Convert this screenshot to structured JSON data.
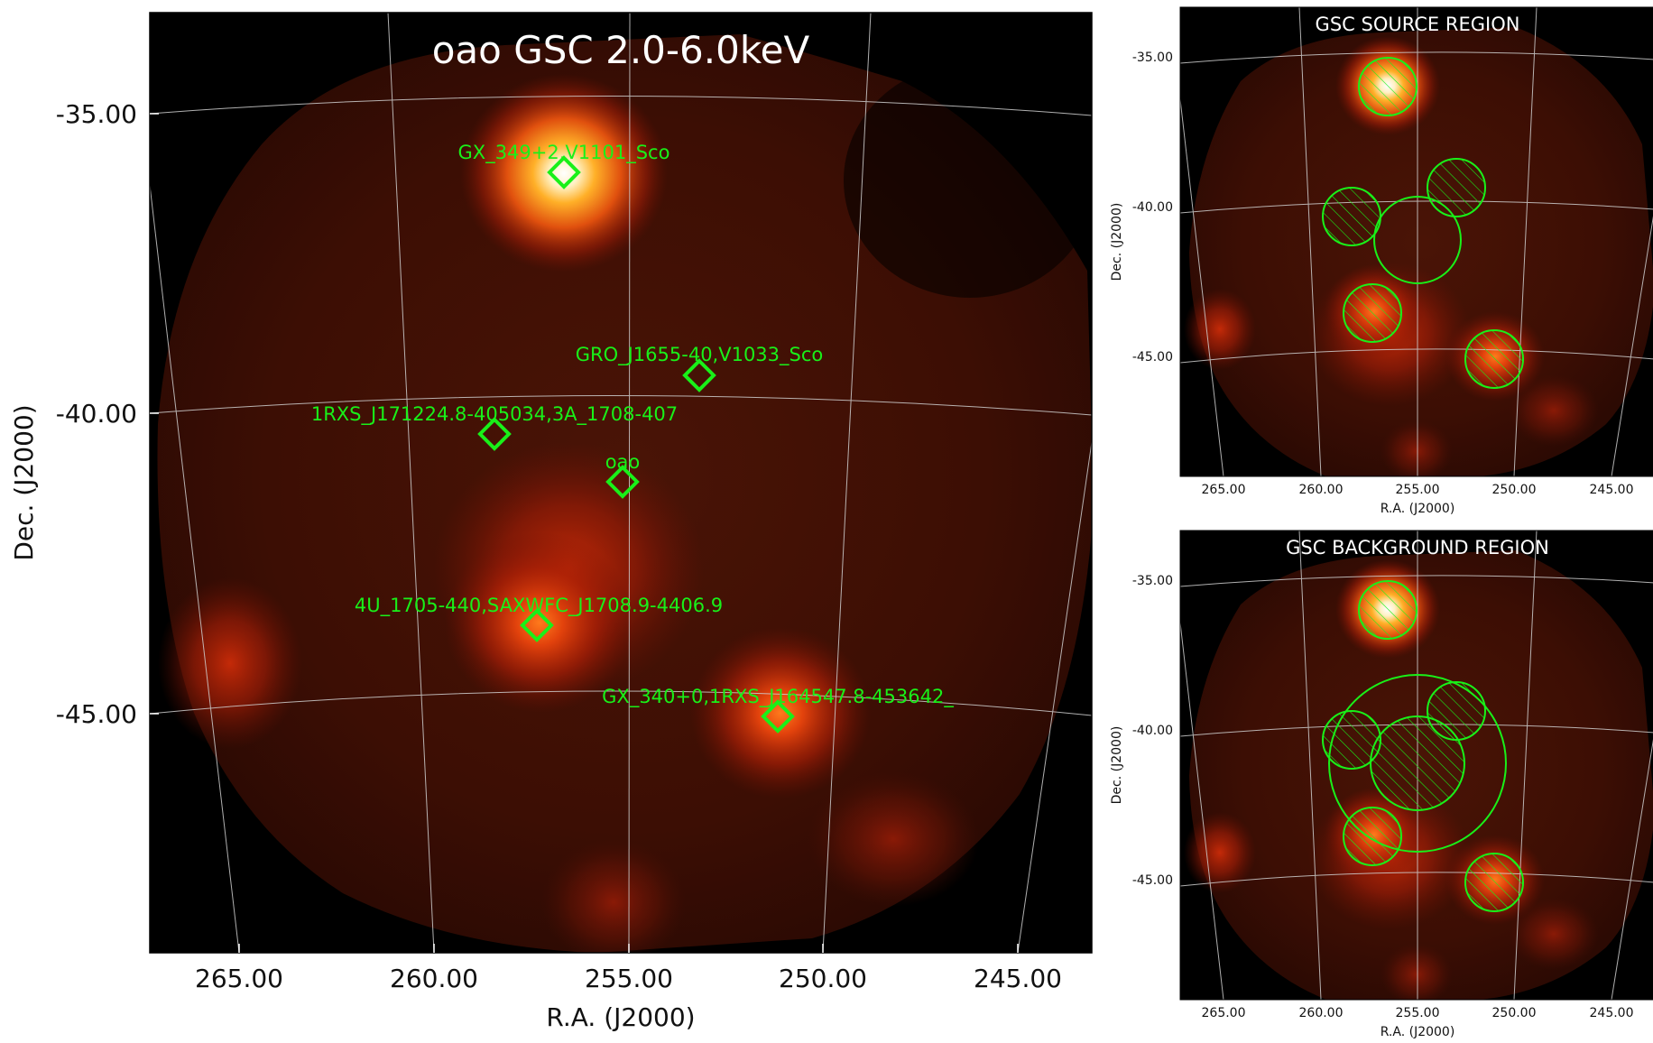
{
  "main_panel": {
    "title": "oao GSC 2.0-6.0keV",
    "xlabel": "R.A. (J2000)",
    "ylabel": "Dec. (J2000)",
    "x_ticks": [
      "265.00",
      "260.00",
      "255.00",
      "250.00",
      "245.00"
    ],
    "y_ticks": [
      "-35.00",
      "-40.00",
      "-45.00"
    ],
    "sources": [
      {
        "label": "GX_349+2,V1101_Sco"
      },
      {
        "label": "GRO_J1655-40,V1033_Sco"
      },
      {
        "label": "1RXS_J171224.8-405034,3A_1708-407"
      },
      {
        "label": "oao"
      },
      {
        "label": "4U_1705-440,SAXWFC_J1708.9-4406.9"
      },
      {
        "label": "GX_340+0,1RXS_J164547.8-453642_"
      }
    ]
  },
  "source_panel": {
    "title": "GSC SOURCE REGION",
    "xlabel": "R.A. (J2000)",
    "ylabel": "Dec. (J2000)",
    "x_ticks": [
      "265.00",
      "260.00",
      "255.00",
      "250.00",
      "245.00"
    ],
    "y_ticks": [
      "-35.00",
      "-40.00",
      "-45.00"
    ]
  },
  "background_panel": {
    "title": "GSC BACKGROUND REGION",
    "xlabel": "R.A. (J2000)",
    "ylabel": "Dec. (J2000)",
    "x_ticks": [
      "265.00",
      "260.00",
      "255.00",
      "250.00",
      "245.00"
    ],
    "y_ticks": [
      "-35.00",
      "-40.00",
      "-45.00"
    ]
  },
  "colors": {
    "region_green": "#19f019",
    "grid": "#cfcfcf",
    "sky_background": "#000000",
    "image_base": "#3a0c04",
    "hot_core": "#ffffff",
    "hot_mid": "#ffb020",
    "hot_outer": "#c02806"
  }
}
